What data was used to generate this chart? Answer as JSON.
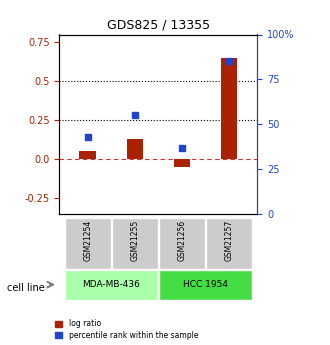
{
  "title": "GDS825 / 13355",
  "samples": [
    "GSM21254",
    "GSM21255",
    "GSM21256",
    "GSM21257"
  ],
  "log_ratio": [
    0.055,
    0.13,
    -0.05,
    0.65
  ],
  "percentile_rank": [
    0.43,
    0.55,
    0.37,
    0.85
  ],
  "bar_color": "#aa2200",
  "dot_color": "#2244cc",
  "left_ylim": [
    -0.35,
    0.8
  ],
  "right_ylim": [
    0,
    100
  ],
  "left_yticks": [
    -0.25,
    0.0,
    0.25,
    0.5,
    0.75
  ],
  "right_yticks": [
    0,
    25,
    50,
    75,
    100
  ],
  "right_yticklabels": [
    "0",
    "25",
    "50",
    "75",
    "100%"
  ],
  "hline_dotted": [
    0.25,
    0.5
  ],
  "hline_zero_color": "#cc3333",
  "cell_lines": [
    {
      "label": "MDA-MB-436",
      "samples": [
        0,
        1
      ],
      "color": "#aaffaa"
    },
    {
      "label": "HCC 1954",
      "samples": [
        2,
        3
      ],
      "color": "#44dd44"
    }
  ],
  "sample_box_color": "#cccccc",
  "legend_items": [
    {
      "label": "log ratio",
      "color": "#aa2200"
    },
    {
      "label": "percentile rank within the sample",
      "color": "#2244cc"
    }
  ],
  "cell_line_label": "cell line",
  "bar_width": 0.35
}
